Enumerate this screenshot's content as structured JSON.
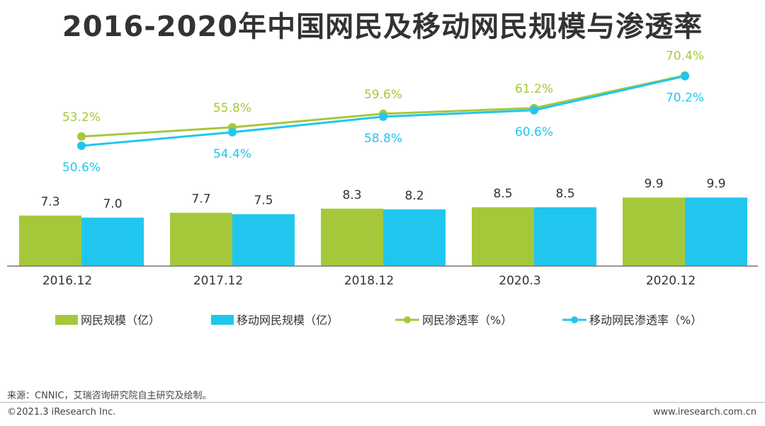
{
  "chart_data": {
    "type": "bar",
    "title": "2016-2020年中国网民及移动网民规模与渗透率",
    "categories": [
      "2016.12",
      "2017.12",
      "2018.12",
      "2020.3",
      "2020.12"
    ],
    "bar_series": [
      {
        "name": "网民规模（亿）",
        "values": [
          7.3,
          7.7,
          8.3,
          8.5,
          9.9
        ],
        "color": "#a5c83a"
      },
      {
        "name": "移动网民规模（亿）",
        "values": [
          7.0,
          7.5,
          8.2,
          8.5,
          9.9
        ],
        "color": "#21c6ef"
      }
    ],
    "line_series": [
      {
        "name": "网民渗透率（%）",
        "values": [
          53.2,
          55.8,
          59.6,
          61.2,
          70.4
        ],
        "labels": [
          "53.2%",
          "55.8%",
          "59.6%",
          "61.2%",
          "70.4%"
        ],
        "color": "#a5c83a"
      },
      {
        "name": "移动网民渗透率（%）",
        "values": [
          50.6,
          54.4,
          58.8,
          60.6,
          70.2
        ],
        "labels": [
          "50.6%",
          "54.4%",
          "58.8%",
          "60.6%",
          "70.2%"
        ],
        "color": "#21c6ef"
      }
    ],
    "legend_position": "bottom"
  },
  "footer": {
    "source": "来源：CNNIC，艾瑞咨询研究院自主研究及绘制。",
    "copyright": "©2021.3 iResearch Inc.",
    "website": "www.iresearch.com.cn"
  }
}
